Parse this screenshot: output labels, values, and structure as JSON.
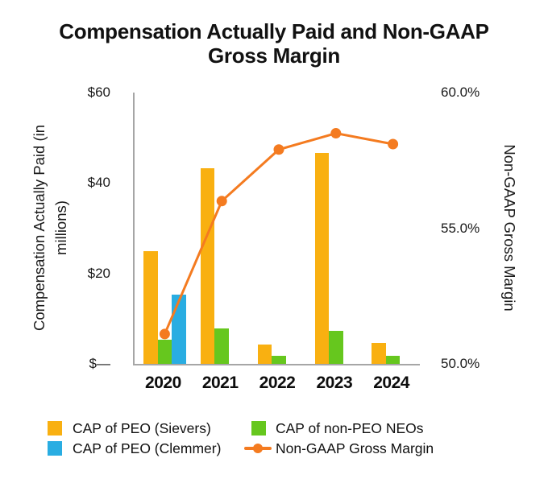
{
  "header": {
    "title_line1": "Compensation Actually Paid and Non-GAAP",
    "title_line2": "Gross Margin"
  },
  "chart_data": {
    "type": "bar",
    "subtype": "combo-bar-line",
    "title": "Compensation Actually Paid and Non-GAAP Gross Margin",
    "categories": [
      "2020",
      "2021",
      "2022",
      "2023",
      "2024"
    ],
    "series": [
      {
        "name": "CAP of PEO (Sievers)",
        "type": "bar",
        "axis": "left",
        "color": "#F9B011",
        "values": [
          25.0,
          43.2,
          4.3,
          46.6,
          4.6
        ]
      },
      {
        "name": "CAP of non-PEO NEOs",
        "type": "bar",
        "axis": "left",
        "color": "#66C71E",
        "values": [
          5.4,
          7.8,
          1.8,
          7.3,
          1.8
        ]
      },
      {
        "name": "CAP of PEO (Clemmer)",
        "type": "bar",
        "axis": "left",
        "color": "#29ADE2",
        "values": [
          15.3,
          0,
          0,
          0,
          0
        ]
      },
      {
        "name": "Non-GAAP Gross Margin",
        "type": "line",
        "axis": "right",
        "color": "#F47B20",
        "values": [
          51.1,
          56.0,
          57.9,
          58.5,
          58.1
        ]
      }
    ],
    "left_axis": {
      "label_line1": "Compensation Actually Paid (in",
      "label_line2": "millions)",
      "ticks": [
        "$60",
        "$40",
        "$20",
        "$—"
      ],
      "tick_values": [
        60,
        40,
        20,
        0
      ],
      "range": [
        0,
        60
      ]
    },
    "right_axis": {
      "label": "Non-GAAP Gross Margin",
      "ticks": [
        "60.0%",
        "55.0%",
        "50.0%"
      ],
      "tick_values": [
        60,
        55,
        50
      ],
      "range": [
        50,
        60
      ]
    },
    "grid": false,
    "legend_position": "bottom"
  },
  "legend": {
    "items": [
      {
        "label": "CAP of PEO (Sievers)",
        "color": "#F9B011",
        "symbol": "square"
      },
      {
        "label": "CAP of PEO (Clemmer)",
        "color": "#29ADE2",
        "symbol": "square"
      },
      {
        "label": "CAP of non-PEO NEOs",
        "color": "#66C71E",
        "symbol": "square"
      },
      {
        "label": "Non-GAAP Gross Margin",
        "color": "#F47B20",
        "symbol": "line-marker"
      }
    ]
  },
  "colors": {
    "axis_line": "#a6a6a6",
    "text": "#111111"
  }
}
